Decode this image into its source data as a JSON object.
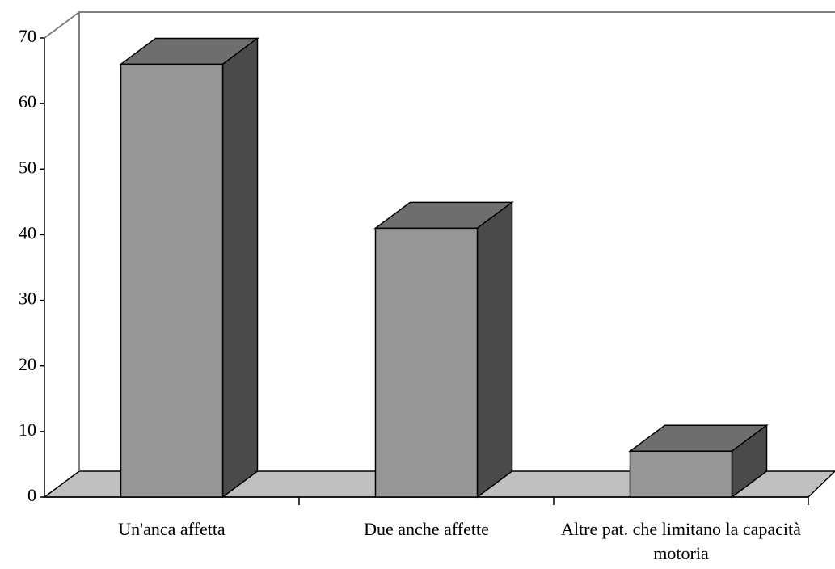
{
  "chart_data": {
    "type": "bar3d",
    "categories": [
      "Un'anca affetta",
      "Due anche affette",
      "Altre pat. che limitano la capacità motoria"
    ],
    "values": [
      66,
      41,
      7
    ],
    "color": "#969696",
    "ylim": [
      0,
      70
    ],
    "yticks": [
      0,
      10,
      20,
      30,
      40,
      50,
      60,
      70
    ]
  }
}
